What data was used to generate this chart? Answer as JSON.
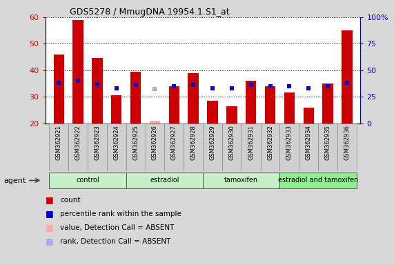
{
  "title": "GDS5278 / MmugDNA.19954.1.S1_at",
  "samples": [
    "GSM362921",
    "GSM362922",
    "GSM362923",
    "GSM362924",
    "GSM362925",
    "GSM362926",
    "GSM362927",
    "GSM362928",
    "GSM362929",
    "GSM362930",
    "GSM362931",
    "GSM362932",
    "GSM362933",
    "GSM362934",
    "GSM362935",
    "GSM362936"
  ],
  "count_values": [
    46,
    59,
    44.5,
    30.5,
    39.5,
    null,
    34,
    39,
    28.5,
    26.5,
    36,
    34,
    31.5,
    26,
    35,
    55
  ],
  "count_absent": [
    null,
    null,
    null,
    null,
    null,
    21,
    null,
    null,
    null,
    null,
    null,
    null,
    null,
    null,
    null,
    null
  ],
  "rank_values": [
    38,
    40,
    37,
    33,
    36,
    null,
    35,
    36,
    33,
    33,
    36,
    35,
    35,
    33,
    35,
    38
  ],
  "rank_absent": [
    null,
    null,
    null,
    null,
    null,
    32,
    null,
    null,
    null,
    null,
    null,
    null,
    null,
    null,
    null,
    null
  ],
  "ylim_left": [
    20,
    60
  ],
  "ylim_right": [
    0,
    100
  ],
  "yticks_left": [
    20,
    30,
    40,
    50,
    60
  ],
  "yticks_right": [
    0,
    25,
    50,
    75,
    100
  ],
  "ytick_labels_right": [
    "0",
    "25",
    "50",
    "75",
    "100%"
  ],
  "groups": [
    {
      "label": "control",
      "start": 0,
      "end": 3,
      "color": "#c8f0c8"
    },
    {
      "label": "estradiol",
      "start": 4,
      "end": 7,
      "color": "#c8f0c8"
    },
    {
      "label": "tamoxifen",
      "start": 8,
      "end": 11,
      "color": "#c8f0c8"
    },
    {
      "label": "estradiol and tamoxifen",
      "start": 12,
      "end": 15,
      "color": "#90ee90"
    }
  ],
  "bar_color": "#cc0000",
  "bar_color_absent": "#ffaaaa",
  "rank_color": "#0000cc",
  "rank_color_absent": "#aaaaee",
  "figure_bg": "#d8d8d8",
  "plot_bg": "#ffffff",
  "left_tick_color": "#cc0000",
  "right_tick_color": "#0000cc",
  "bar_width": 0.55,
  "rank_marker_size": 5,
  "agent_label": "agent"
}
